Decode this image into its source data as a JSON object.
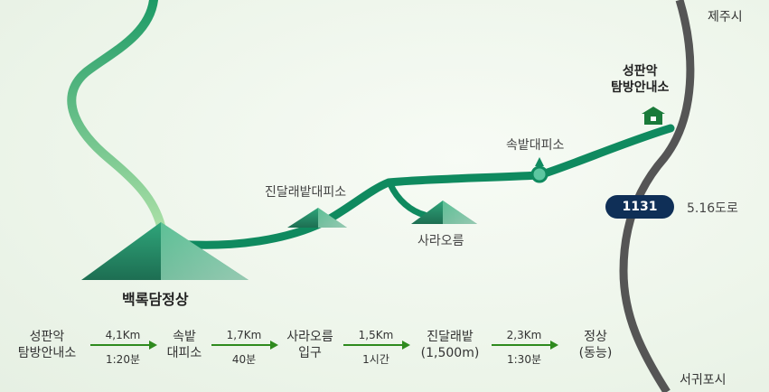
{
  "places": {
    "jeju_city": "제주시",
    "seogwipo_city": "서귀포시",
    "summit": "백록담정상",
    "trailhead_line1": "성판악",
    "trailhead_line2": "탐방안내소",
    "sokbat_shelter": "속밭대피소",
    "jindallaebat_shelter": "진달래밭대피소",
    "saraoreum": "사라오름"
  },
  "road": {
    "number": "1131",
    "name": "5.16도로"
  },
  "course": {
    "stops": [
      {
        "line1": "성판악",
        "line2": "탐방안내소"
      },
      {
        "line1": "속밭",
        "line2": "대피소"
      },
      {
        "line1": "사라오름",
        "line2": "입구"
      },
      {
        "line1": "진달래밭",
        "line2": "(1,500m)"
      },
      {
        "line1": "정상",
        "line2": "(동능)"
      }
    ],
    "segments": [
      {
        "distance": "4,1Km",
        "time": "1:20분"
      },
      {
        "distance": "1,7Km",
        "time": "40분"
      },
      {
        "distance": "1,5Km",
        "time": "1시간"
      },
      {
        "distance": "2,3Km",
        "time": "1:30분"
      }
    ]
  },
  "colors": {
    "trail": "#0f8a5f",
    "road": "#555555",
    "road_badge": "#0f2f57",
    "arrow": "#2e8a1e",
    "mountain": "#2f9a70"
  }
}
